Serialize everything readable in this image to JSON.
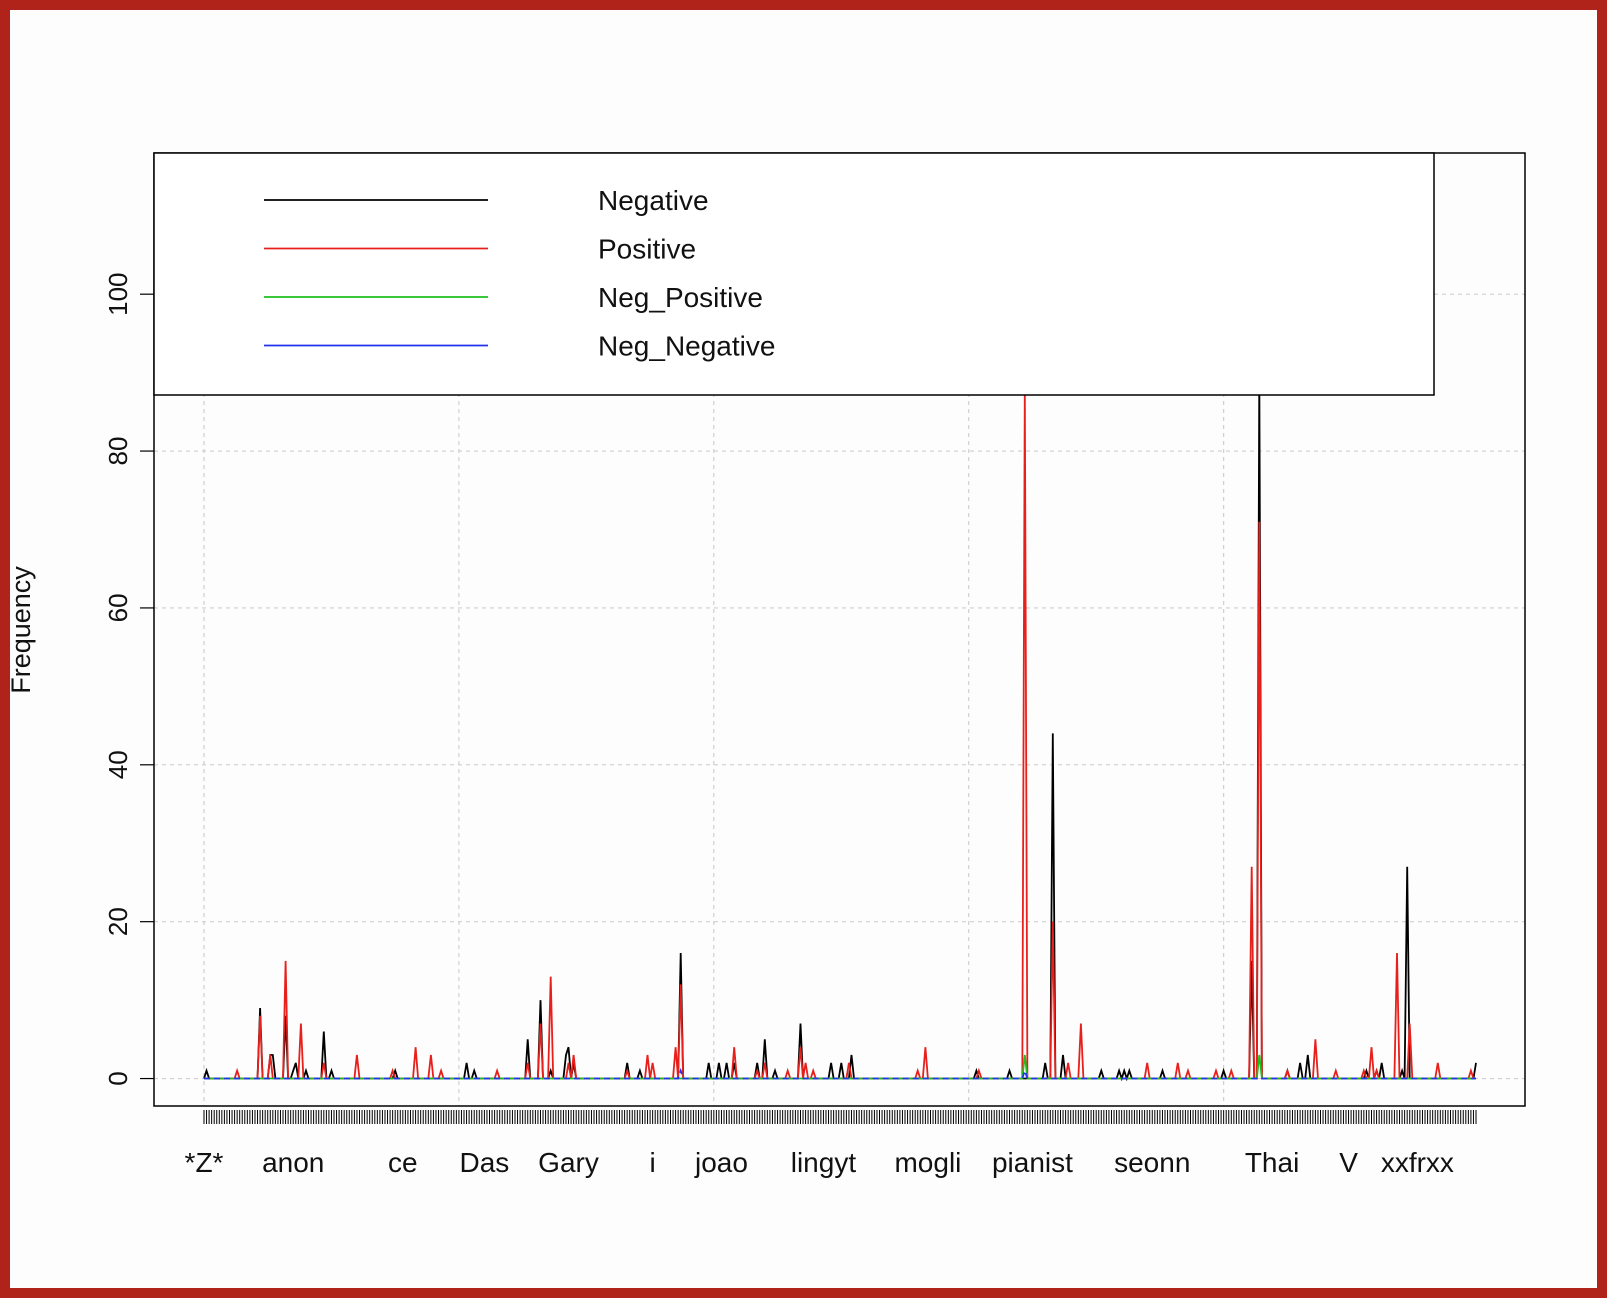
{
  "chart_data": {
    "type": "line",
    "title": "",
    "xlabel": "",
    "ylabel": "Frequency",
    "ylim": [
      -3.5,
      118
    ],
    "yticks": [
      0,
      20,
      40,
      60,
      80,
      100
    ],
    "grid": true,
    "legend_position": "top-left",
    "x_count": 500,
    "categories": [
      {
        "label": "*Z*",
        "index": 0
      },
      {
        "label": "anon",
        "index": 35
      },
      {
        "label": "ce",
        "index": 78
      },
      {
        "label": "Das",
        "index": 110
      },
      {
        "label": "Gary",
        "index": 143
      },
      {
        "label": "i",
        "index": 176
      },
      {
        "label": "joao",
        "index": 203
      },
      {
        "label": "lingyt",
        "index": 243
      },
      {
        "label": "mogli",
        "index": 284
      },
      {
        "label": "pianist",
        "index": 325
      },
      {
        "label": "seonn",
        "index": 372
      },
      {
        "label": "Thai",
        "index": 419
      },
      {
        "label": "V",
        "index": 449
      },
      {
        "label": "xxfrxx",
        "index": 476
      }
    ],
    "series": [
      {
        "name": "Negative",
        "color": "#000000",
        "style": "solid",
        "peaks": [
          [
            1,
            1
          ],
          [
            22,
            9
          ],
          [
            26,
            3
          ],
          [
            27,
            3
          ],
          [
            32,
            8
          ],
          [
            35,
            1
          ],
          [
            36,
            2
          ],
          [
            40,
            1
          ],
          [
            47,
            6
          ],
          [
            50,
            1
          ],
          [
            75,
            1
          ],
          [
            103,
            2
          ],
          [
            106,
            1
          ],
          [
            127,
            5
          ],
          [
            132,
            10
          ],
          [
            136,
            1
          ],
          [
            142,
            3
          ],
          [
            143,
            4
          ],
          [
            145,
            2
          ],
          [
            166,
            2
          ],
          [
            171,
            1
          ],
          [
            187,
            16
          ],
          [
            198,
            2
          ],
          [
            202,
            2
          ],
          [
            205,
            2
          ],
          [
            208,
            2
          ],
          [
            217,
            2
          ],
          [
            220,
            5
          ],
          [
            224,
            1
          ],
          [
            234,
            7
          ],
          [
            246,
            2
          ],
          [
            250,
            2
          ],
          [
            254,
            3
          ],
          [
            303,
            1
          ],
          [
            316,
            1
          ],
          [
            330,
            2
          ],
          [
            333,
            44
          ],
          [
            337,
            3
          ],
          [
            352,
            1
          ],
          [
            359,
            1
          ],
          [
            361,
            1
          ],
          [
            363,
            1
          ],
          [
            376,
            1
          ],
          [
            400,
            1
          ],
          [
            411,
            15
          ],
          [
            414,
            90
          ],
          [
            425,
            1
          ],
          [
            430,
            2
          ],
          [
            433,
            3
          ],
          [
            456,
            1
          ],
          [
            460,
            1
          ],
          [
            462,
            2
          ],
          [
            470,
            1
          ],
          [
            472,
            27
          ],
          [
            499,
            2
          ]
        ]
      },
      {
        "name": "Positive",
        "color": "#e8201c",
        "style": "solid",
        "peaks": [
          [
            13,
            1
          ],
          [
            22,
            8
          ],
          [
            26,
            3
          ],
          [
            32,
            15
          ],
          [
            38,
            7
          ],
          [
            47,
            2
          ],
          [
            60,
            3
          ],
          [
            74,
            1
          ],
          [
            83,
            4
          ],
          [
            89,
            3
          ],
          [
            93,
            1
          ],
          [
            115,
            1
          ],
          [
            127,
            2
          ],
          [
            132,
            7
          ],
          [
            136,
            13
          ],
          [
            143,
            2
          ],
          [
            145,
            3
          ],
          [
            166,
            1
          ],
          [
            174,
            3
          ],
          [
            176,
            2
          ],
          [
            185,
            4
          ],
          [
            187,
            12
          ],
          [
            208,
            4
          ],
          [
            217,
            1
          ],
          [
            220,
            2
          ],
          [
            229,
            1
          ],
          [
            234,
            4
          ],
          [
            236,
            2
          ],
          [
            239,
            1
          ],
          [
            253,
            2
          ],
          [
            280,
            1
          ],
          [
            283,
            4
          ],
          [
            304,
            1
          ],
          [
            322,
            88
          ],
          [
            333,
            20
          ],
          [
            339,
            2
          ],
          [
            344,
            7
          ],
          [
            370,
            2
          ],
          [
            382,
            2
          ],
          [
            386,
            1
          ],
          [
            397,
            1
          ],
          [
            403,
            1
          ],
          [
            411,
            27
          ],
          [
            414,
            71
          ],
          [
            425,
            1
          ],
          [
            436,
            5
          ],
          [
            444,
            1
          ],
          [
            455,
            1
          ],
          [
            458,
            4
          ],
          [
            460,
            1
          ],
          [
            468,
            16
          ],
          [
            473,
            7
          ],
          [
            484,
            2
          ],
          [
            497,
            1
          ]
        ]
      },
      {
        "name": "Neg_Positive",
        "color": "#1fbf1f",
        "style": "solid",
        "peaks": [
          [
            322,
            3
          ],
          [
            414,
            3
          ]
        ]
      },
      {
        "name": "Neg_Negative",
        "color": "#2233ee",
        "style": "dashed",
        "peaks": [
          [
            187,
            1
          ],
          [
            322,
            1
          ]
        ]
      }
    ]
  }
}
